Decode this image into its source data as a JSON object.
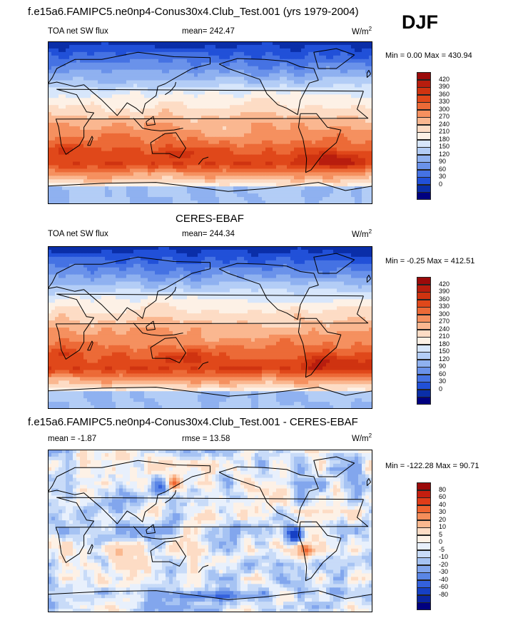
{
  "header": {
    "title": "f.e15a6.FAMIPC5.ne0np4-Conus30x4.Club_Test.001 (yrs 1979-2004)",
    "season": "DJF"
  },
  "panels": [
    {
      "center_title": "",
      "left_label": "TOA net SW flux",
      "mid_label": "mean= 242.47",
      "units": "W/m",
      "units_sup": "2",
      "minmax": "Min =   0.00 Max = 430.94",
      "scale": "abs"
    },
    {
      "center_title": "CERES-EBAF",
      "left_label": "TOA net SW flux",
      "mid_label": "mean= 244.34",
      "units": "W/m",
      "units_sup": "2",
      "minmax": "Min =  -0.25 Max = 412.51",
      "scale": "abs"
    },
    {
      "center_title": "f.e15a6.FAMIPC5.ne0np4-Conus30x4.Club_Test.001 - CERES-EBAF",
      "left_label": "mean =  -1.87",
      "mid_label": "rmse =  13.58",
      "units": "W/m",
      "units_sup": "2",
      "minmax": "Min = -122.28 Max =  90.71",
      "scale": "diff"
    }
  ],
  "colorbars": {
    "abs": {
      "labels": [
        "420",
        "390",
        "360",
        "330",
        "300",
        "270",
        "240",
        "210",
        "180",
        "150",
        "120",
        "90",
        "60",
        "30",
        "0"
      ],
      "colors": [
        "#9b0a0a",
        "#b81d0e",
        "#cf3310",
        "#e0481a",
        "#ec6a37",
        "#f5905f",
        "#fab790",
        "#fddcc5",
        "#fdf1e6",
        "#d7e6fb",
        "#b3cdf6",
        "#8fb1f0",
        "#6a92ea",
        "#4572e3",
        "#2150d8",
        "#0a2ea8",
        "#000080"
      ]
    },
    "diff": {
      "labels": [
        "80",
        "60",
        "40",
        "30",
        "20",
        "10",
        "5",
        "0",
        "-5",
        "-10",
        "-20",
        "-30",
        "-40",
        "-60",
        "-80"
      ],
      "colors": [
        "#9b0a0a",
        "#c41e0f",
        "#e03c18",
        "#ef6430",
        "#f68e5a",
        "#fab88f",
        "#fddcc5",
        "#fdf1e6",
        "#e8f0fc",
        "#c8dbf8",
        "#a6c3f3",
        "#82a6ed",
        "#5a86e6",
        "#3461dc",
        "#1640c4",
        "#0a25a0",
        "#000080"
      ]
    }
  },
  "chart_data": [
    {
      "type": "heatmap",
      "title": "f.e15a6.FAMIPC5.ne0np4-Conus30x4.Club_Test.001 (yrs 1979-2004)",
      "subtitle": "TOA net SW flux",
      "units": "W/m2",
      "mean": 242.47,
      "min": 0.0,
      "max": 430.94,
      "levels": [
        0,
        30,
        60,
        90,
        120,
        150,
        180,
        210,
        240,
        270,
        300,
        330,
        360,
        390,
        420
      ],
      "season": "DJF"
    },
    {
      "type": "heatmap",
      "title": "CERES-EBAF",
      "subtitle": "TOA net SW flux",
      "units": "W/m2",
      "mean": 244.34,
      "min": -0.25,
      "max": 412.51,
      "levels": [
        0,
        30,
        60,
        90,
        120,
        150,
        180,
        210,
        240,
        270,
        300,
        330,
        360,
        390,
        420
      ],
      "season": "DJF"
    },
    {
      "type": "heatmap",
      "title": "f.e15a6.FAMIPC5.ne0np4-Conus30x4.Club_Test.001 - CERES-EBAF",
      "units": "W/m2",
      "mean": -1.87,
      "rmse": 13.58,
      "min": -122.28,
      "max": 90.71,
      "levels": [
        -80,
        -60,
        -40,
        -30,
        -20,
        -10,
        -5,
        0,
        5,
        10,
        20,
        30,
        40,
        60,
        80
      ],
      "season": "DJF"
    }
  ]
}
